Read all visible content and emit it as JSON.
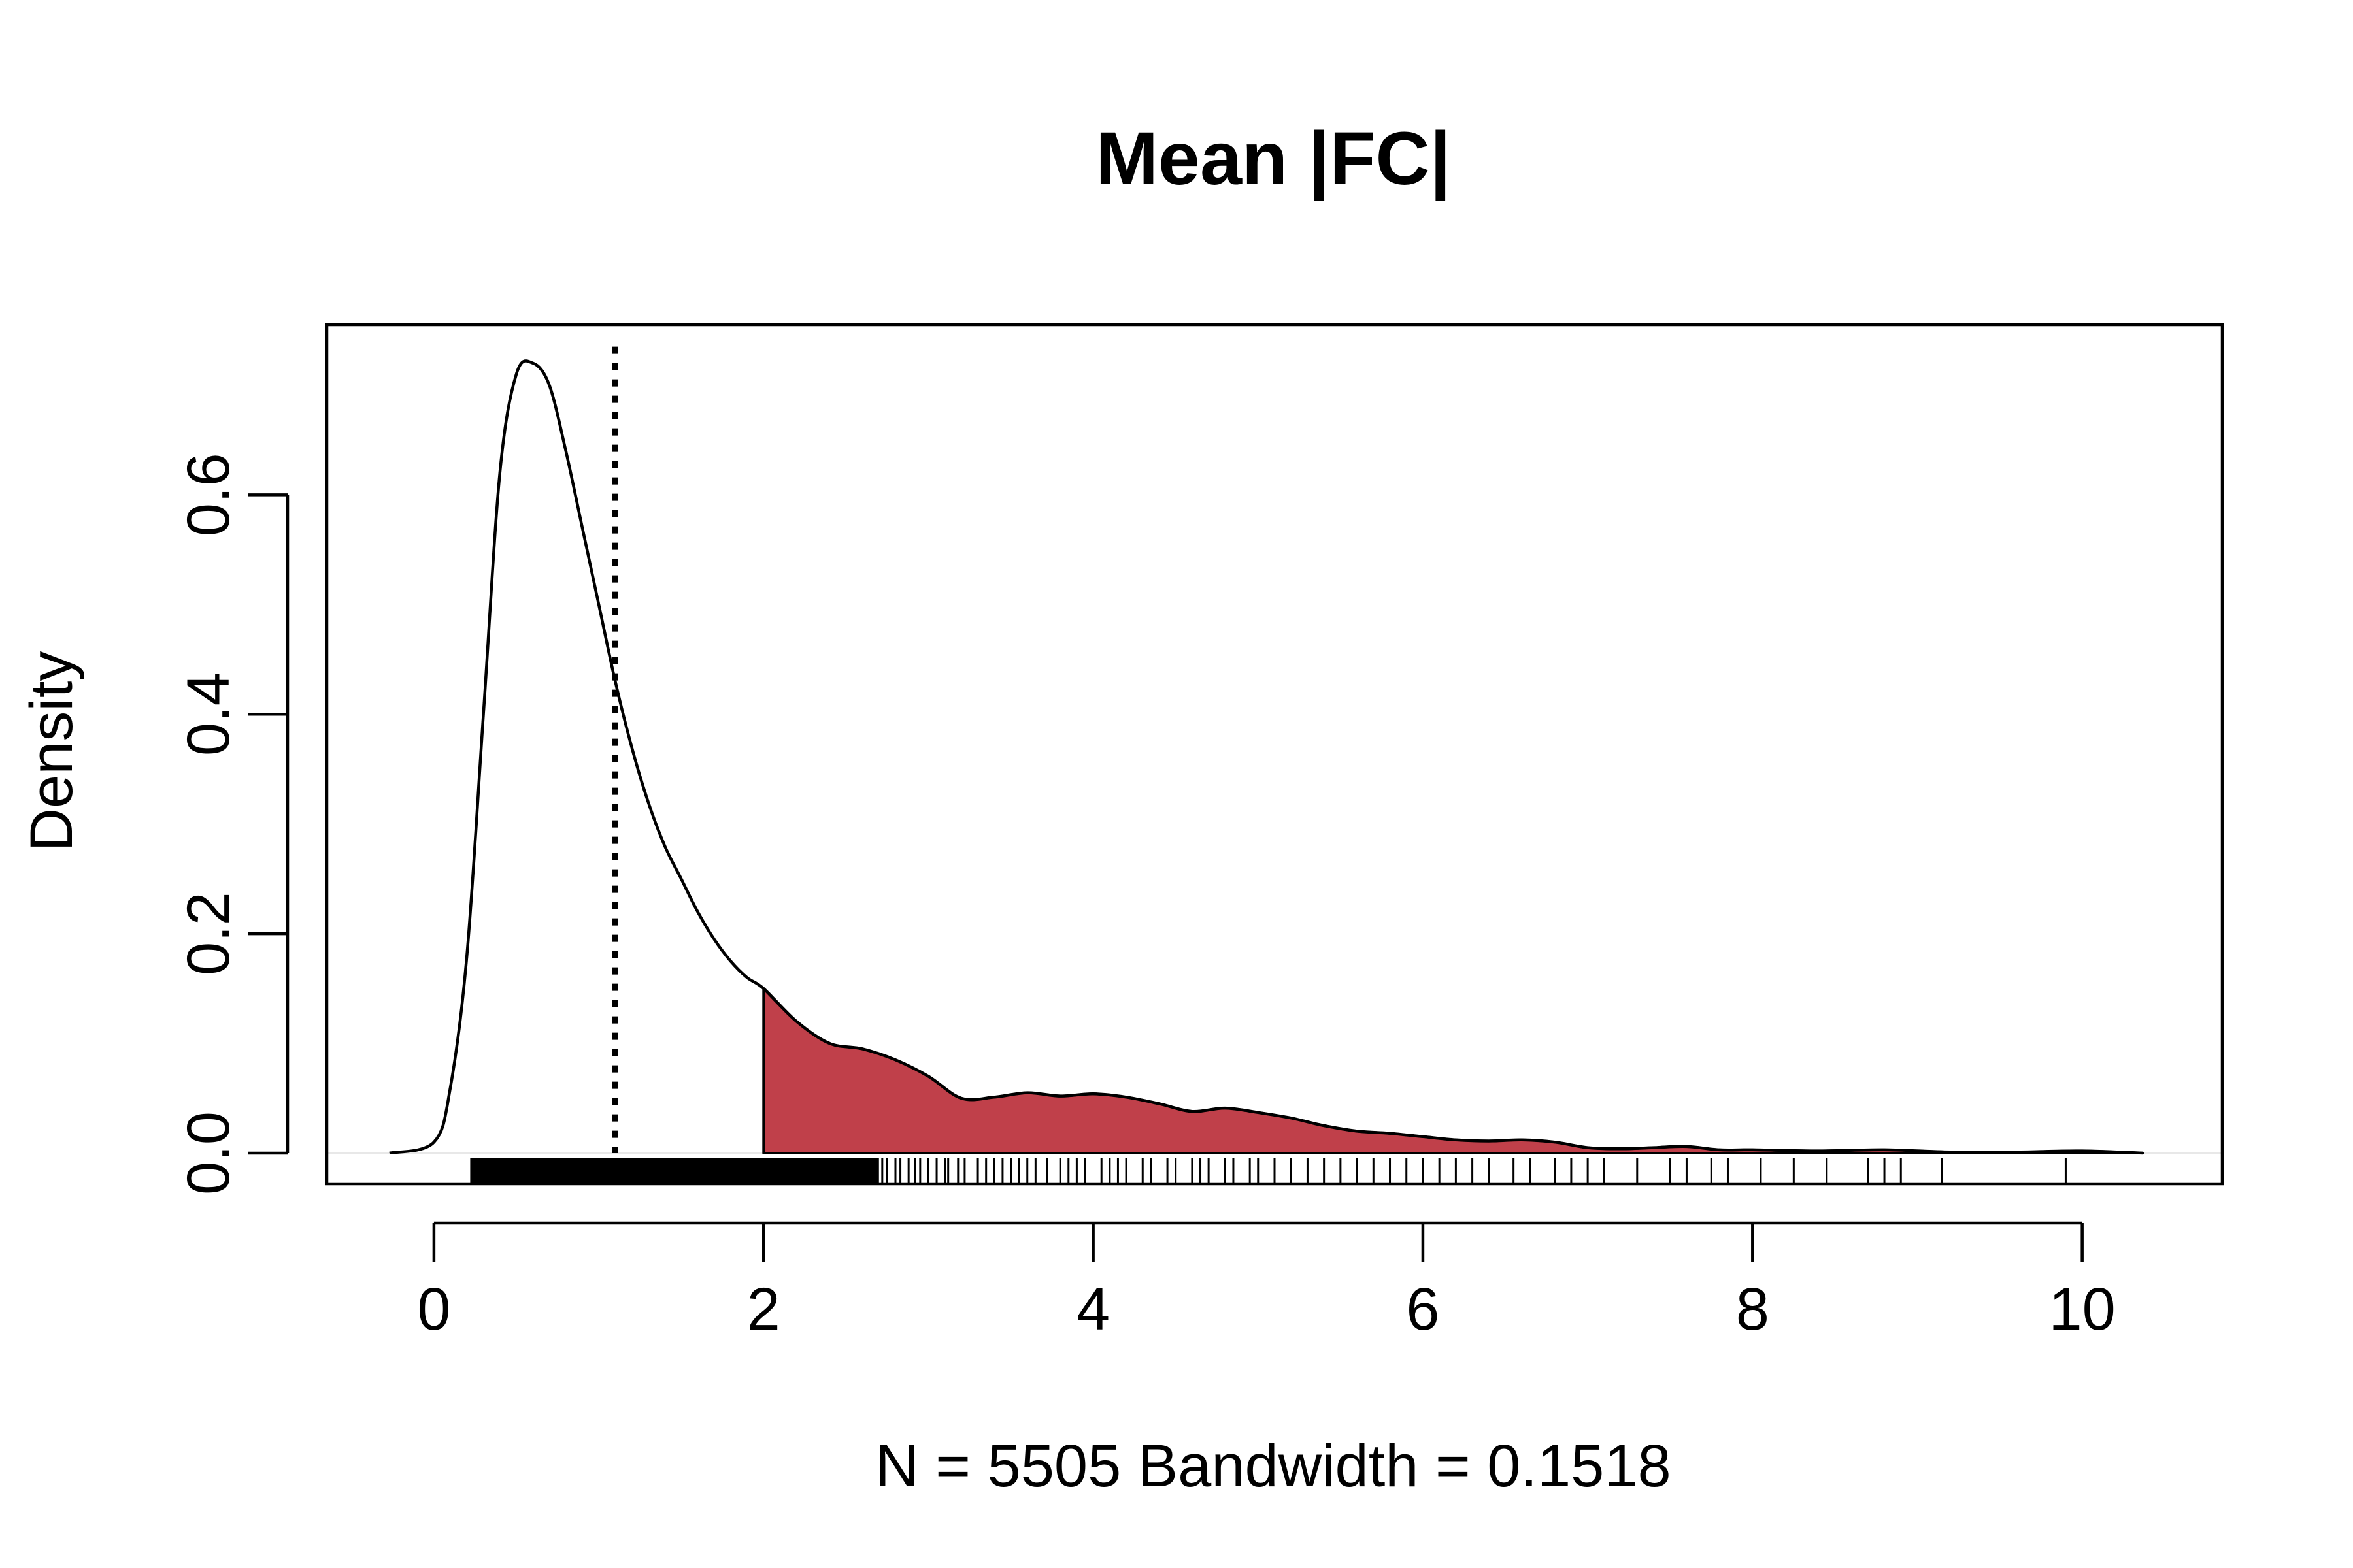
{
  "chart_data": {
    "type": "area",
    "title": "Mean |FC|",
    "xlabel": "N = 5505   Bandwidth = 0.1518",
    "ylabel": "Density",
    "xlim": [
      -0.65,
      10.85
    ],
    "ylim": [
      -0.028,
      0.755
    ],
    "x_ticks": [
      0,
      2,
      4,
      6,
      8,
      10
    ],
    "x_tick_labels": [
      "0",
      "2",
      "4",
      "6",
      "8",
      "10"
    ],
    "y_ticks": [
      0.0,
      0.2,
      0.4,
      0.6
    ],
    "y_tick_labels": [
      "0.0",
      "0.2",
      "0.4",
      "0.6"
    ],
    "grid": false,
    "legend": "none",
    "series": [
      {
        "x": [
          -0.27,
          0.0,
          0.1,
          0.2,
          0.3,
          0.4,
          0.5,
          0.6,
          0.7,
          0.8,
          0.9,
          1.0,
          1.1,
          1.2,
          1.3,
          1.4,
          1.5,
          1.6,
          1.7,
          1.8,
          1.9,
          2.0,
          2.2,
          2.4,
          2.6,
          2.8,
          3.0,
          3.2,
          3.4,
          3.6,
          3.8,
          4.0,
          4.2,
          4.4,
          4.6,
          4.8,
          5.0,
          5.2,
          5.4,
          5.6,
          5.8,
          6.0,
          6.2,
          6.4,
          6.6,
          6.8,
          7.0,
          7.2,
          7.4,
          7.6,
          7.8,
          8.0,
          8.4,
          8.8,
          9.2,
          9.6,
          10.0,
          10.37
        ],
        "y": [
          0.0,
          0.01,
          0.06,
          0.18,
          0.4,
          0.62,
          0.71,
          0.72,
          0.7,
          0.64,
          0.57,
          0.5,
          0.43,
          0.37,
          0.32,
          0.28,
          0.25,
          0.22,
          0.195,
          0.175,
          0.16,
          0.15,
          0.12,
          0.1,
          0.095,
          0.085,
          0.07,
          0.05,
          0.051,
          0.055,
          0.052,
          0.054,
          0.051,
          0.045,
          0.038,
          0.041,
          0.037,
          0.032,
          0.025,
          0.02,
          0.018,
          0.015,
          0.012,
          0.011,
          0.012,
          0.01,
          0.005,
          0.004,
          0.005,
          0.006,
          0.003,
          0.003,
          0.002,
          0.003,
          0.001,
          0.001,
          0.002,
          0.0
        ]
      }
    ],
    "shaded_region": {
      "from": 2.0,
      "to": 10.37,
      "color": "#c0404a"
    },
    "reference_line": {
      "x": 1.1,
      "style": "dotted"
    },
    "rug": {
      "dense_range": [
        0.22,
        2.7
      ],
      "x": [
        2.72,
        2.75,
        2.8,
        2.83,
        2.88,
        2.92,
        2.95,
        3.0,
        3.05,
        3.1,
        3.12,
        3.18,
        3.22,
        3.3,
        3.35,
        3.4,
        3.45,
        3.5,
        3.55,
        3.6,
        3.65,
        3.72,
        3.8,
        3.85,
        3.9,
        3.95,
        4.05,
        4.1,
        4.15,
        4.2,
        4.3,
        4.35,
        4.45,
        4.5,
        4.6,
        4.65,
        4.7,
        4.8,
        4.85,
        4.95,
        5.0,
        5.1,
        5.2,
        5.3,
        5.4,
        5.5,
        5.6,
        5.7,
        5.8,
        5.9,
        6.0,
        6.1,
        6.2,
        6.3,
        6.4,
        6.55,
        6.65,
        6.8,
        6.9,
        7.0,
        7.1,
        7.3,
        7.5,
        7.6,
        7.75,
        7.85,
        8.05,
        8.25,
        8.45,
        8.7,
        8.8,
        8.9,
        9.15,
        9.9
      ]
    }
  }
}
